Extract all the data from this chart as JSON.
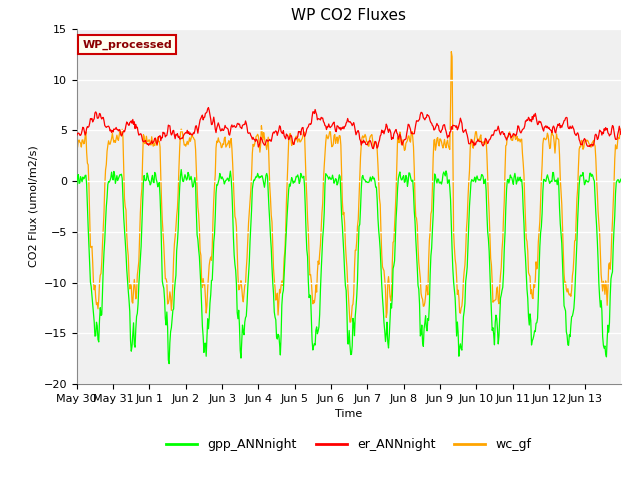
{
  "title": "WP CO2 Fluxes",
  "xlabel": "Time",
  "ylabel": "CO2 Flux (umol/m2/s)",
  "ylim": [
    -20,
    15
  ],
  "yticks": [
    -20,
    -15,
    -10,
    -5,
    0,
    5,
    10,
    15
  ],
  "n_days": 15,
  "n_per_day": 48,
  "colors": {
    "gpp": "#00FF00",
    "er": "#FF0000",
    "wc": "#FFA500"
  },
  "legend_label": "WP_processed",
  "legend_text_color": "#8B0000",
  "legend_bg_color": "#FFFFF0",
  "legend_edge_color": "#CC0000",
  "series_labels": [
    "gpp_ANNnight",
    "er_ANNnight",
    "wc_gf"
  ],
  "bg_color": "#EBEBEB",
  "plot_bg_color": "#F0F0F0",
  "title_fontsize": 11,
  "axis_fontsize": 8,
  "tick_fontsize": 8,
  "linewidth": 0.9
}
